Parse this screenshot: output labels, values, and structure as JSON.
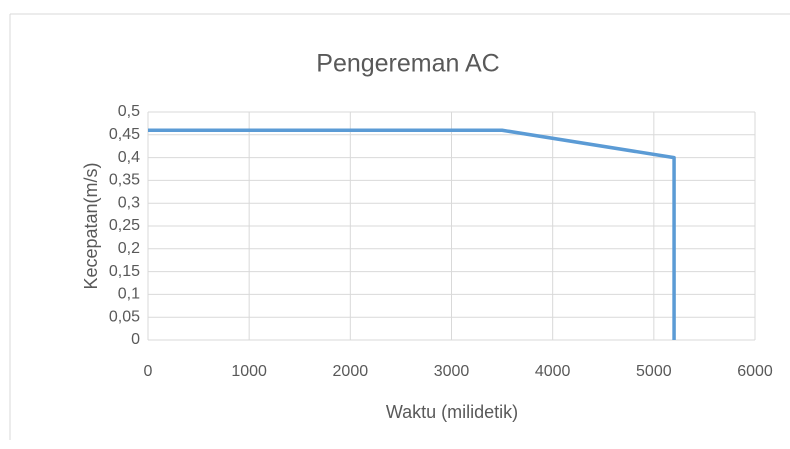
{
  "chart_data": {
    "type": "line",
    "title": "Pengereman AC",
    "x_label": "Waktu (milidetik)",
    "y_label": "Kecepatan(m/s)",
    "x": [
      0,
      3500,
      5200,
      5200
    ],
    "values": [
      0.46,
      0.46,
      0.4,
      0
    ],
    "color": "#5b9bd5",
    "xlim": [
      0,
      6000
    ],
    "xticks": [
      0,
      1000,
      2000,
      3000,
      4000,
      5000,
      6000
    ],
    "ylim": [
      0,
      0.5
    ],
    "yticks": [
      0,
      {
        "value": 0.05,
        "label": "0,05"
      },
      {
        "value": 0.1,
        "label": "0,1"
      },
      {
        "value": 0.15,
        "label": "0,15"
      },
      {
        "value": 0.2,
        "label": "0,2"
      },
      {
        "value": 0.25,
        "label": "0,25"
      },
      {
        "value": 0.3,
        "label": "0,3"
      },
      {
        "value": 0.35,
        "label": "0,35"
      },
      {
        "value": 0.4,
        "label": "0,4"
      },
      {
        "value": 0.45,
        "label": "0,45"
      },
      {
        "value": 0.5,
        "label": "0,5"
      }
    ],
    "grid": true
  }
}
